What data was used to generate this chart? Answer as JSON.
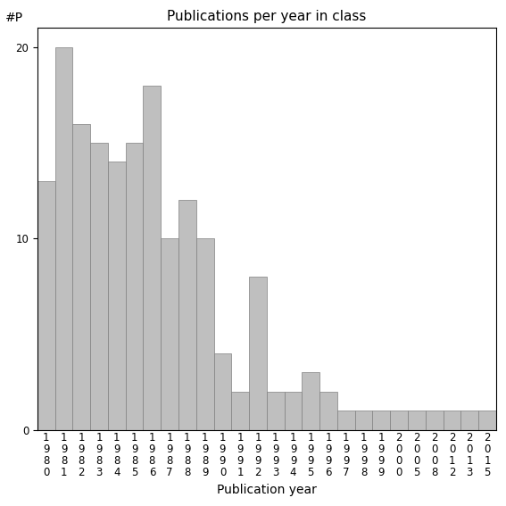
{
  "title": "Publications per year in class",
  "xlabel": "Publication year",
  "ylabel": "#P",
  "categories": [
    "1\n9\n8\n0",
    "1\n9\n8\n1",
    "1\n9\n8\n2",
    "1\n9\n8\n3",
    "1\n9\n8\n4",
    "1\n9\n8\n5",
    "1\n9\n8\n6",
    "1\n9\n8\n7",
    "1\n9\n8\n8",
    "1\n9\n8\n9",
    "1\n9\n9\n0",
    "1\n9\n9\n1",
    "1\n9\n9\n2",
    "1\n9\n9\n3",
    "1\n9\n9\n4",
    "1\n9\n9\n5",
    "1\n9\n9\n6",
    "1\n9\n9\n7",
    "1\n9\n9\n8",
    "1\n9\n9\n9",
    "2\n0\n0\n0",
    "2\n0\n0\n5",
    "2\n0\n0\n8",
    "2\n0\n1\n2",
    "2\n0\n1\n3",
    "2\n0\n1\n5"
  ],
  "values": [
    13,
    20,
    16,
    15,
    14,
    15,
    18,
    10,
    12,
    10,
    4,
    2,
    8,
    2,
    2,
    3,
    2,
    1,
    1,
    1,
    1,
    1,
    1,
    1,
    1,
    1
  ],
  "bar_color": "#bfbfbf",
  "bar_edge_color": "#808080",
  "bar_edge_width": 0.5,
  "ylim": [
    0,
    21
  ],
  "yticks": [
    0,
    10,
    20
  ],
  "background_color": "#ffffff",
  "title_fontsize": 11,
  "axis_fontsize": 10,
  "tick_fontsize": 8.5,
  "ylabel_fontsize": 10
}
